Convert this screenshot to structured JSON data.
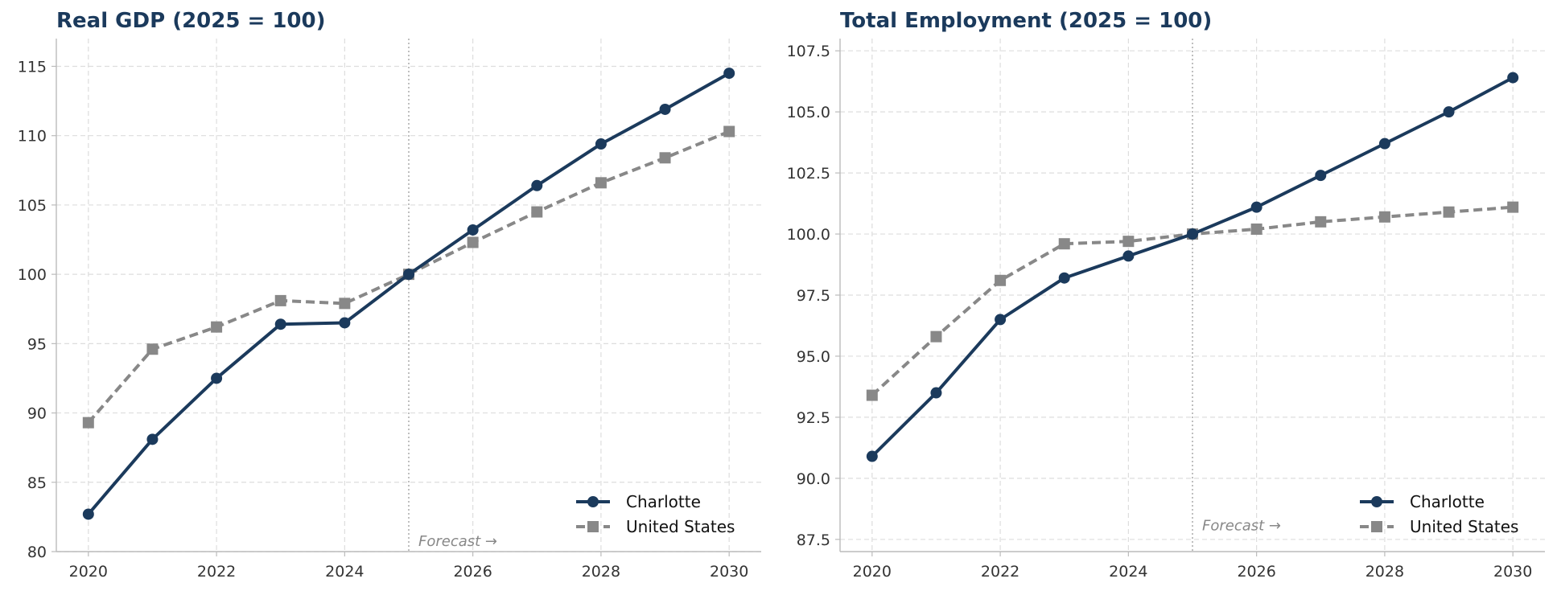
{
  "colors": {
    "charlotte": "#1b3a5c",
    "united_states": "#888888",
    "title": "#1b3a5c",
    "grid": "#dddddd",
    "axis": "#bbbbbb",
    "forecast_line": "#aaaaaa"
  },
  "chart_data": [
    {
      "type": "line",
      "title": "Real GDP (2025 = 100)",
      "xlabel": "",
      "ylabel": "",
      "x": [
        2020,
        2021,
        2022,
        2023,
        2024,
        2025,
        2026,
        2027,
        2028,
        2029,
        2030
      ],
      "xlim": [
        2019.5,
        2030.5
      ],
      "ylim": [
        80,
        117
      ],
      "xticks": [
        "2020",
        "2022",
        "2024",
        "2026",
        "2028",
        "2030"
      ],
      "yticks": [
        "80",
        "85",
        "90",
        "95",
        "100",
        "105",
        "110",
        "115"
      ],
      "grid": true,
      "legend_position": "bottom-right",
      "forecast_start": 2025,
      "annotation": "Forecast →",
      "series": [
        {
          "name": "Charlotte",
          "marker": "circle",
          "style": "solid",
          "values": [
            82.7,
            88.1,
            92.5,
            96.4,
            96.5,
            100.0,
            103.2,
            106.4,
            109.4,
            111.9,
            114.5
          ]
        },
        {
          "name": "United States",
          "marker": "square",
          "style": "dashed",
          "values": [
            89.3,
            94.6,
            96.2,
            98.1,
            97.9,
            100.0,
            102.3,
            104.5,
            106.6,
            108.4,
            110.3
          ]
        }
      ]
    },
    {
      "type": "line",
      "title": "Total Employment (2025 = 100)",
      "xlabel": "",
      "ylabel": "",
      "x": [
        2020,
        2021,
        2022,
        2023,
        2024,
        2025,
        2026,
        2027,
        2028,
        2029,
        2030
      ],
      "xlim": [
        2019.5,
        2030.5
      ],
      "ylim": [
        87.0,
        108.0
      ],
      "xticks": [
        "2020",
        "2022",
        "2024",
        "2026",
        "2028",
        "2030"
      ],
      "yticks": [
        "87.5",
        "90.0",
        "92.5",
        "95.0",
        "97.5",
        "100.0",
        "102.5",
        "105.0",
        "107.5"
      ],
      "grid": true,
      "legend_position": "bottom-right",
      "forecast_start": 2025,
      "annotation": "Forecast →",
      "series": [
        {
          "name": "Charlotte",
          "marker": "circle",
          "style": "solid",
          "values": [
            90.9,
            93.5,
            96.5,
            98.2,
            99.1,
            100.0,
            101.1,
            102.4,
            103.7,
            105.0,
            106.4
          ]
        },
        {
          "name": "United States",
          "marker": "square",
          "style": "dashed",
          "values": [
            93.4,
            95.8,
            98.1,
            99.6,
            99.7,
            100.0,
            100.2,
            100.5,
            100.7,
            100.9,
            101.1
          ]
        }
      ]
    }
  ]
}
